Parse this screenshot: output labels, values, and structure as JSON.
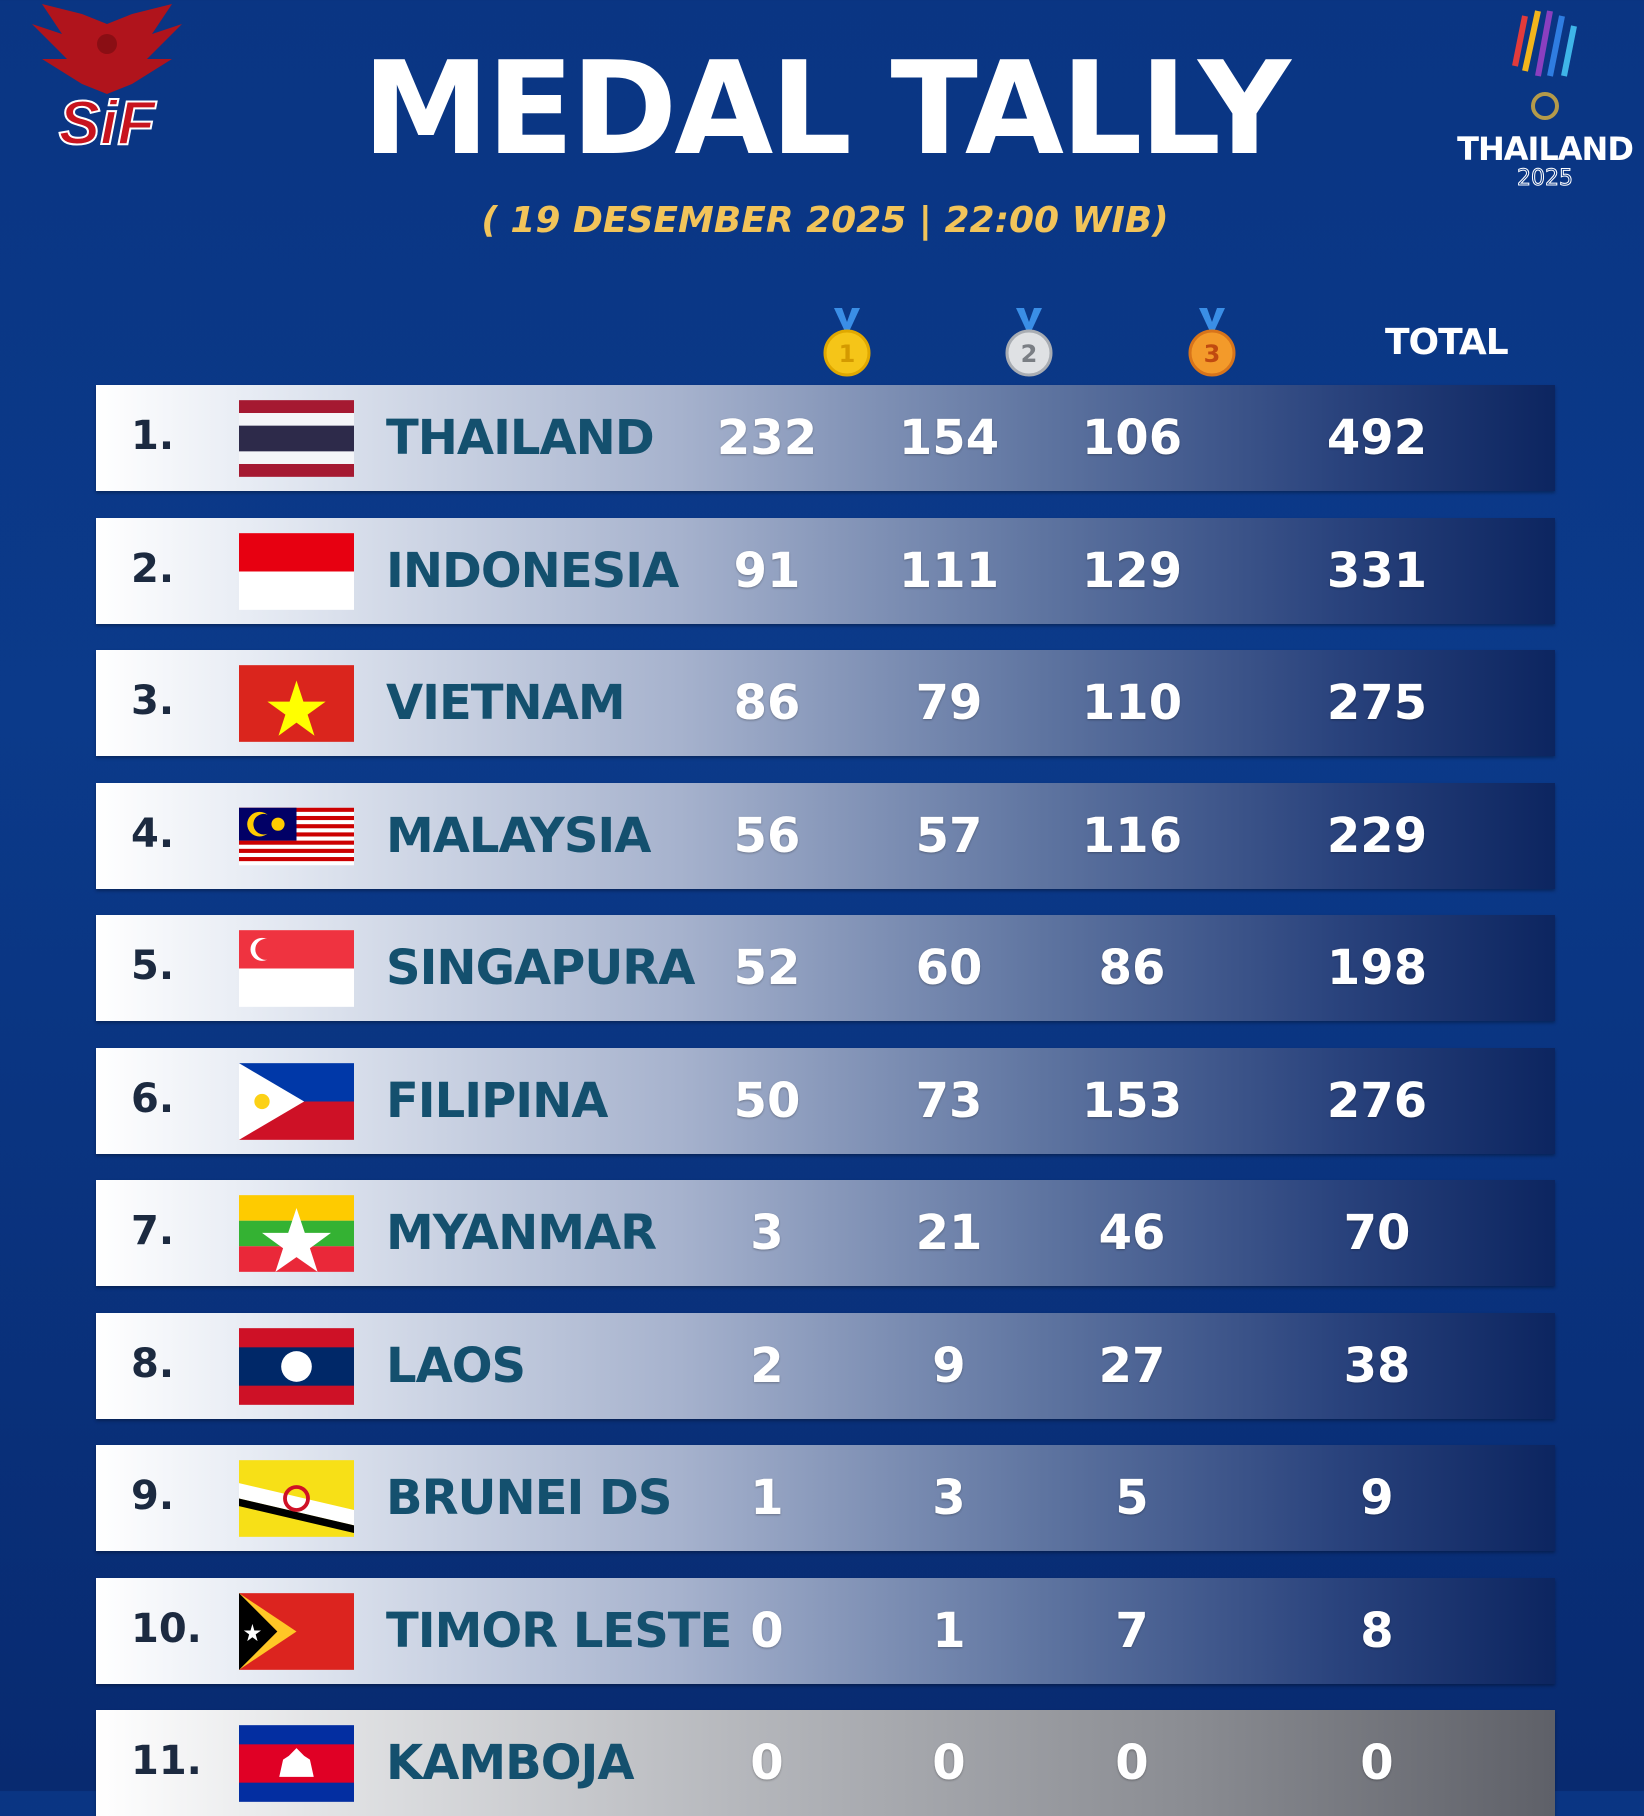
{
  "header": {
    "title": "MEDAL TALLY",
    "subtitle": "( 19 DESEMBER 2025 | 22:00 WIB)",
    "left_logo_text": "SiF",
    "right_logo_text": "THAILAND",
    "right_logo_year": "2025",
    "columns": {
      "gold": "1",
      "silver": "2",
      "bronze": "3",
      "total": "TOTAL"
    }
  },
  "colors": {
    "background": "#0b3a8a",
    "subtitle": "#f2c45a",
    "country": "#14506e"
  },
  "rows": [
    {
      "rank": "1.",
      "country": "THAILAND",
      "flag": "thailand",
      "gold": "232",
      "silver": "154",
      "bronze": "106",
      "total": "492"
    },
    {
      "rank": "2.",
      "country": "INDONESIA",
      "flag": "indonesia",
      "gold": "91",
      "silver": "111",
      "bronze": "129",
      "total": "331"
    },
    {
      "rank": "3.",
      "country": "VIETNAM",
      "flag": "vietnam",
      "gold": "86",
      "silver": "79",
      "bronze": "110",
      "total": "275"
    },
    {
      "rank": "4.",
      "country": "MALAYSIA",
      "flag": "malaysia",
      "gold": "56",
      "silver": "57",
      "bronze": "116",
      "total": "229"
    },
    {
      "rank": "5.",
      "country": "SINGAPURA",
      "flag": "singapore",
      "gold": "52",
      "silver": "60",
      "bronze": "86",
      "total": "198"
    },
    {
      "rank": "6.",
      "country": "FILIPINA",
      "flag": "philippines",
      "gold": "50",
      "silver": "73",
      "bronze": "153",
      "total": "276"
    },
    {
      "rank": "7.",
      "country": "MYANMAR",
      "flag": "myanmar",
      "gold": "3",
      "silver": "21",
      "bronze": "46",
      "total": "70"
    },
    {
      "rank": "8.",
      "country": "LAOS",
      "flag": "laos",
      "gold": "2",
      "silver": "9",
      "bronze": "27",
      "total": "38"
    },
    {
      "rank": "9.",
      "country": "BRUNEI DS",
      "flag": "brunei",
      "gold": "1",
      "silver": "3",
      "bronze": "5",
      "total": "9"
    },
    {
      "rank": "10.",
      "country": "TIMOR LESTE",
      "flag": "timor-leste",
      "gold": "0",
      "silver": "1",
      "bronze": "7",
      "total": "8"
    },
    {
      "rank": "11.",
      "country": "KAMBOJA",
      "flag": "cambodia",
      "gold": "0",
      "silver": "0",
      "bronze": "0",
      "total": "0"
    }
  ]
}
